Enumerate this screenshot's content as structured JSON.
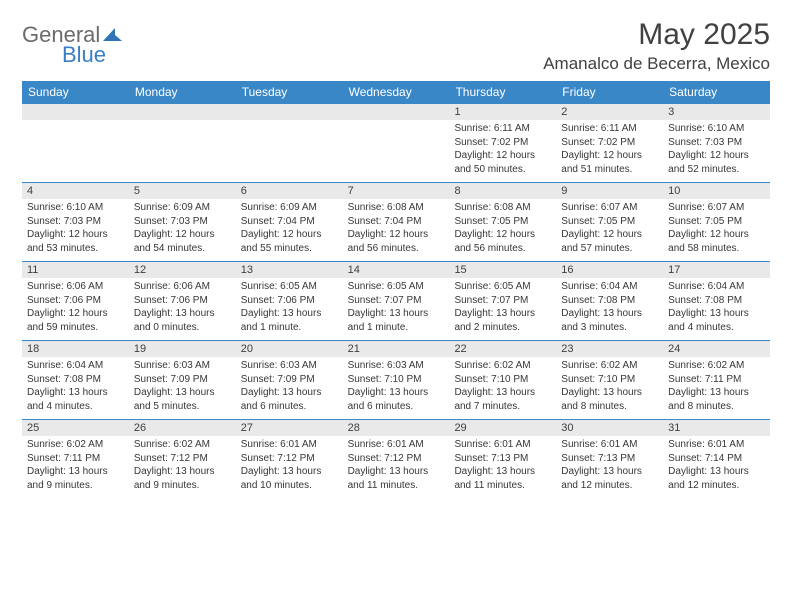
{
  "logo": {
    "general": "General",
    "blue": "Blue"
  },
  "header": {
    "title": "May 2025",
    "location": "Amanalco de Becerra, Mexico"
  },
  "colors": {
    "header_bar": "#3a87c7",
    "daynum_bg": "#e9e9e9",
    "text": "#373737",
    "title": "#414141",
    "week_border": "#3a87c7"
  },
  "calendar": {
    "weekdays": [
      "Sunday",
      "Monday",
      "Tuesday",
      "Wednesday",
      "Thursday",
      "Friday",
      "Saturday"
    ],
    "weeks": [
      [
        {
          "type": "empty"
        },
        {
          "type": "empty"
        },
        {
          "type": "empty"
        },
        {
          "type": "empty"
        },
        {
          "day": "1",
          "sunrise": "Sunrise: 6:11 AM",
          "sunset": "Sunset: 7:02 PM",
          "daylight": "Daylight: 12 hours and 50 minutes."
        },
        {
          "day": "2",
          "sunrise": "Sunrise: 6:11 AM",
          "sunset": "Sunset: 7:02 PM",
          "daylight": "Daylight: 12 hours and 51 minutes."
        },
        {
          "day": "3",
          "sunrise": "Sunrise: 6:10 AM",
          "sunset": "Sunset: 7:03 PM",
          "daylight": "Daylight: 12 hours and 52 minutes."
        }
      ],
      [
        {
          "day": "4",
          "sunrise": "Sunrise: 6:10 AM",
          "sunset": "Sunset: 7:03 PM",
          "daylight": "Daylight: 12 hours and 53 minutes."
        },
        {
          "day": "5",
          "sunrise": "Sunrise: 6:09 AM",
          "sunset": "Sunset: 7:03 PM",
          "daylight": "Daylight: 12 hours and 54 minutes."
        },
        {
          "day": "6",
          "sunrise": "Sunrise: 6:09 AM",
          "sunset": "Sunset: 7:04 PM",
          "daylight": "Daylight: 12 hours and 55 minutes."
        },
        {
          "day": "7",
          "sunrise": "Sunrise: 6:08 AM",
          "sunset": "Sunset: 7:04 PM",
          "daylight": "Daylight: 12 hours and 56 minutes."
        },
        {
          "day": "8",
          "sunrise": "Sunrise: 6:08 AM",
          "sunset": "Sunset: 7:05 PM",
          "daylight": "Daylight: 12 hours and 56 minutes."
        },
        {
          "day": "9",
          "sunrise": "Sunrise: 6:07 AM",
          "sunset": "Sunset: 7:05 PM",
          "daylight": "Daylight: 12 hours and 57 minutes."
        },
        {
          "day": "10",
          "sunrise": "Sunrise: 6:07 AM",
          "sunset": "Sunset: 7:05 PM",
          "daylight": "Daylight: 12 hours and 58 minutes."
        }
      ],
      [
        {
          "day": "11",
          "sunrise": "Sunrise: 6:06 AM",
          "sunset": "Sunset: 7:06 PM",
          "daylight": "Daylight: 12 hours and 59 minutes."
        },
        {
          "day": "12",
          "sunrise": "Sunrise: 6:06 AM",
          "sunset": "Sunset: 7:06 PM",
          "daylight": "Daylight: 13 hours and 0 minutes."
        },
        {
          "day": "13",
          "sunrise": "Sunrise: 6:05 AM",
          "sunset": "Sunset: 7:06 PM",
          "daylight": "Daylight: 13 hours and 1 minute."
        },
        {
          "day": "14",
          "sunrise": "Sunrise: 6:05 AM",
          "sunset": "Sunset: 7:07 PM",
          "daylight": "Daylight: 13 hours and 1 minute."
        },
        {
          "day": "15",
          "sunrise": "Sunrise: 6:05 AM",
          "sunset": "Sunset: 7:07 PM",
          "daylight": "Daylight: 13 hours and 2 minutes."
        },
        {
          "day": "16",
          "sunrise": "Sunrise: 6:04 AM",
          "sunset": "Sunset: 7:08 PM",
          "daylight": "Daylight: 13 hours and 3 minutes."
        },
        {
          "day": "17",
          "sunrise": "Sunrise: 6:04 AM",
          "sunset": "Sunset: 7:08 PM",
          "daylight": "Daylight: 13 hours and 4 minutes."
        }
      ],
      [
        {
          "day": "18",
          "sunrise": "Sunrise: 6:04 AM",
          "sunset": "Sunset: 7:08 PM",
          "daylight": "Daylight: 13 hours and 4 minutes."
        },
        {
          "day": "19",
          "sunrise": "Sunrise: 6:03 AM",
          "sunset": "Sunset: 7:09 PM",
          "daylight": "Daylight: 13 hours and 5 minutes."
        },
        {
          "day": "20",
          "sunrise": "Sunrise: 6:03 AM",
          "sunset": "Sunset: 7:09 PM",
          "daylight": "Daylight: 13 hours and 6 minutes."
        },
        {
          "day": "21",
          "sunrise": "Sunrise: 6:03 AM",
          "sunset": "Sunset: 7:10 PM",
          "daylight": "Daylight: 13 hours and 6 minutes."
        },
        {
          "day": "22",
          "sunrise": "Sunrise: 6:02 AM",
          "sunset": "Sunset: 7:10 PM",
          "daylight": "Daylight: 13 hours and 7 minutes."
        },
        {
          "day": "23",
          "sunrise": "Sunrise: 6:02 AM",
          "sunset": "Sunset: 7:10 PM",
          "daylight": "Daylight: 13 hours and 8 minutes."
        },
        {
          "day": "24",
          "sunrise": "Sunrise: 6:02 AM",
          "sunset": "Sunset: 7:11 PM",
          "daylight": "Daylight: 13 hours and 8 minutes."
        }
      ],
      [
        {
          "day": "25",
          "sunrise": "Sunrise: 6:02 AM",
          "sunset": "Sunset: 7:11 PM",
          "daylight": "Daylight: 13 hours and 9 minutes."
        },
        {
          "day": "26",
          "sunrise": "Sunrise: 6:02 AM",
          "sunset": "Sunset: 7:12 PM",
          "daylight": "Daylight: 13 hours and 9 minutes."
        },
        {
          "day": "27",
          "sunrise": "Sunrise: 6:01 AM",
          "sunset": "Sunset: 7:12 PM",
          "daylight": "Daylight: 13 hours and 10 minutes."
        },
        {
          "day": "28",
          "sunrise": "Sunrise: 6:01 AM",
          "sunset": "Sunset: 7:12 PM",
          "daylight": "Daylight: 13 hours and 11 minutes."
        },
        {
          "day": "29",
          "sunrise": "Sunrise: 6:01 AM",
          "sunset": "Sunset: 7:13 PM",
          "daylight": "Daylight: 13 hours and 11 minutes."
        },
        {
          "day": "30",
          "sunrise": "Sunrise: 6:01 AM",
          "sunset": "Sunset: 7:13 PM",
          "daylight": "Daylight: 13 hours and 12 minutes."
        },
        {
          "day": "31",
          "sunrise": "Sunrise: 6:01 AM",
          "sunset": "Sunset: 7:14 PM",
          "daylight": "Daylight: 13 hours and 12 minutes."
        }
      ]
    ]
  }
}
